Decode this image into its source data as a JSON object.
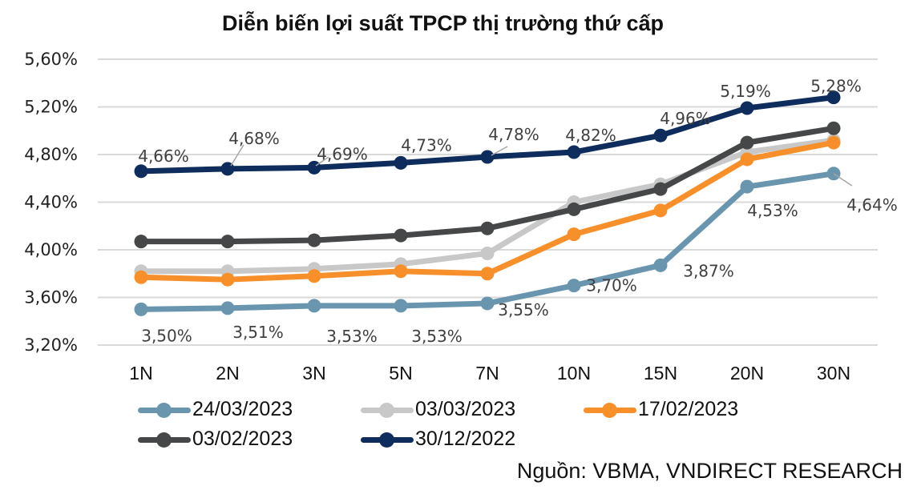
{
  "chart_data": {
    "type": "line",
    "title": "Diễn biến lợi suất TPCP thị trường thứ cấp",
    "xlabel": "",
    "ylabel": "",
    "categories": [
      "1N",
      "2N",
      "3N",
      "5N",
      "7N",
      "10N",
      "15N",
      "20N",
      "30N"
    ],
    "ylim": [
      3.2,
      5.6
    ],
    "yticks": [
      {
        "value": 5.6,
        "label": "5,60%"
      },
      {
        "value": 5.2,
        "label": "5,20%"
      },
      {
        "value": 4.8,
        "label": "4,80%"
      },
      {
        "value": 4.4,
        "label": "4,40%"
      },
      {
        "value": 4.0,
        "label": "4,00%"
      },
      {
        "value": 3.6,
        "label": "3,60%"
      },
      {
        "value": 3.2,
        "label": "3,20%"
      }
    ],
    "grid": true,
    "legend_position": "bottom",
    "series": [
      {
        "name": "24/03/2023",
        "color": "#6996AE",
        "values": [
          3.5,
          3.51,
          3.53,
          3.53,
          3.55,
          3.7,
          3.87,
          4.53,
          4.64
        ],
        "labels": [
          "3,50%",
          "3,51%",
          "3,53%",
          "3,53%",
          "3,55%",
          "3,70%",
          "3,87%",
          "4,53%",
          "4,64%"
        ]
      },
      {
        "name": "03/03/2023",
        "color": "#C8C8C8",
        "values": [
          3.82,
          3.82,
          3.84,
          3.88,
          3.97,
          4.4,
          4.55,
          4.82,
          4.92
        ]
      },
      {
        "name": "17/02/2023",
        "color": "#F7902B",
        "values": [
          3.77,
          3.75,
          3.78,
          3.82,
          3.8,
          4.13,
          4.33,
          4.76,
          4.9
        ]
      },
      {
        "name": "03/02/2023",
        "color": "#454749",
        "values": [
          4.07,
          4.07,
          4.08,
          4.12,
          4.18,
          4.34,
          4.51,
          4.9,
          5.02
        ]
      },
      {
        "name": "30/12/2022",
        "color": "#0F2D5C",
        "values": [
          4.66,
          4.68,
          4.69,
          4.73,
          4.78,
          4.82,
          4.96,
          5.19,
          5.28
        ],
        "labels": [
          "4,66%",
          "4,68%",
          "4,69%",
          "4,73%",
          "4,78%",
          "4,82%",
          "4,96%",
          "5,19%",
          "5,28%"
        ]
      }
    ],
    "source": "Nguồn: VBMA, VNDIRECT RESEARCH"
  }
}
